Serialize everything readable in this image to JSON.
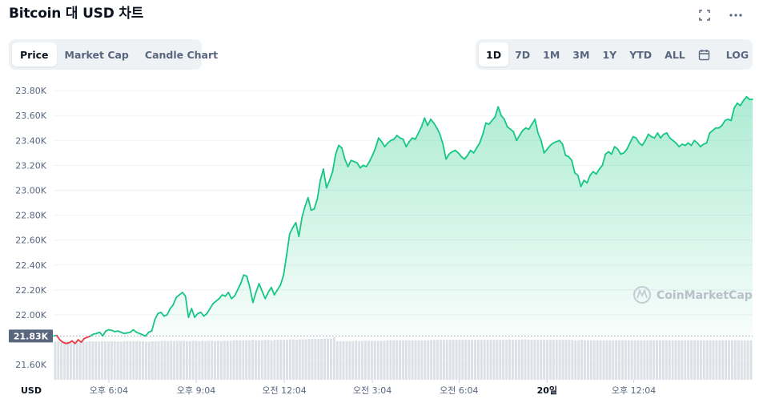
{
  "header": {
    "title": "Bitcoin 대 USD 차트",
    "expand_icon": "expand-icon",
    "more_icon": "more-horizontal-icon"
  },
  "chart_tabs": [
    {
      "label": "Price",
      "active": true
    },
    {
      "label": "Market Cap",
      "active": false
    },
    {
      "label": "Candle Chart",
      "active": false
    }
  ],
  "range_tabs": [
    {
      "label": "1D",
      "active": true
    },
    {
      "label": "7D",
      "active": false
    },
    {
      "label": "1M",
      "active": false
    },
    {
      "label": "3M",
      "active": false
    },
    {
      "label": "1Y",
      "active": false
    },
    {
      "label": "YTD",
      "active": false
    },
    {
      "label": "ALL",
      "active": false
    }
  ],
  "calendar_icon": "calendar-icon",
  "log_label": "LOG",
  "watermark": "CoinMarketCap",
  "colors": {
    "up": "#16c784",
    "down": "#ea3943",
    "axis_text": "#58667e",
    "volume": "#dde1e7",
    "price_tag": "#58667e"
  },
  "chart_data": {
    "type": "line",
    "x_ticks": [
      "오후 6:04",
      "오후 9:04",
      "오전 12:04",
      "오전 3:04",
      "오전 6:04",
      "20일",
      "오후 12:04"
    ],
    "y_ticks": [
      "23.80K",
      "23.60K",
      "23.40K",
      "23.20K",
      "23.00K",
      "22.80K",
      "22.60K",
      "22.40K",
      "22.20K",
      "22.00K",
      "21.60K"
    ],
    "ylim": [
      21530,
      23820
    ],
    "open_price": 21830,
    "open_price_label": "21.83K",
    "currency_label": "USD",
    "price_series": [
      21830,
      21835,
      21800,
      21780,
      21770,
      21775,
      21790,
      21770,
      21800,
      21780,
      21810,
      21820,
      21830,
      21845,
      21850,
      21860,
      21830,
      21870,
      21880,
      21875,
      21865,
      21870,
      21860,
      21850,
      21855,
      21860,
      21880,
      21860,
      21850,
      21840,
      21830,
      21860,
      21870,
      21960,
      22010,
      22020,
      21990,
      22000,
      22050,
      22080,
      22140,
      22160,
      22180,
      22150,
      21980,
      22050,
      21980,
      22010,
      22020,
      21990,
      22010,
      22050,
      22090,
      22110,
      22130,
      22160,
      22150,
      22180,
      22130,
      22150,
      22200,
      22250,
      22320,
      22310,
      22220,
      22100,
      22180,
      22250,
      22190,
      22130,
      22180,
      22220,
      22160,
      22200,
      22240,
      22320,
      22480,
      22650,
      22700,
      22740,
      22630,
      22780,
      22870,
      22940,
      22840,
      22850,
      22930,
      23080,
      23170,
      23020,
      23080,
      23150,
      23290,
      23360,
      23340,
      23250,
      23190,
      23240,
      23230,
      23220,
      23180,
      23200,
      23190,
      23230,
      23280,
      23340,
      23420,
      23390,
      23350,
      23380,
      23400,
      23410,
      23440,
      23420,
      23410,
      23350,
      23390,
      23420,
      23410,
      23460,
      23510,
      23580,
      23520,
      23570,
      23540,
      23500,
      23450,
      23370,
      23250,
      23290,
      23310,
      23320,
      23300,
      23270,
      23250,
      23280,
      23320,
      23300,
      23340,
      23380,
      23450,
      23540,
      23530,
      23560,
      23590,
      23670,
      23600,
      23570,
      23510,
      23490,
      23470,
      23400,
      23440,
      23480,
      23500,
      23490,
      23530,
      23570,
      23460,
      23400,
      23300,
      23330,
      23360,
      23380,
      23390,
      23400,
      23370,
      23280,
      23270,
      23240,
      23140,
      23120,
      23030,
      23080,
      23060,
      23120,
      23150,
      23130,
      23170,
      23200,
      23290,
      23310,
      23290,
      23350,
      23330,
      23290,
      23300,
      23330,
      23380,
      23430,
      23420,
      23380,
      23360,
      23400,
      23450,
      23430,
      23420,
      23460,
      23420,
      23450,
      23460,
      23420,
      23400,
      23380,
      23350,
      23370,
      23360,
      23380,
      23360,
      23400,
      23380,
      23350,
      23370,
      23380,
      23460,
      23480,
      23500,
      23500,
      23520,
      23560,
      23570,
      23560,
      23660,
      23700,
      23680,
      23720,
      23750,
      23730,
      23730
    ],
    "volume_series": [
      0.85,
      0.86,
      0.85,
      0.86,
      0.86,
      0.85,
      0.86,
      0.86,
      0.86,
      0.86,
      0.85,
      0.86,
      0.86,
      0.85,
      0.85,
      0.86,
      0.86,
      0.85,
      0.86,
      0.86,
      0.85,
      0.85,
      0.86,
      0.86,
      0.86,
      0.86,
      0.86,
      0.86,
      0.86,
      0.85,
      0.85,
      0.86,
      0.86,
      0.86,
      0.87,
      0.87,
      0.86,
      0.87,
      0.86,
      0.87,
      0.87,
      0.87,
      0.86,
      0.86,
      0.87,
      0.87,
      0.86,
      0.87,
      0.86,
      0.87,
      0.87,
      0.86,
      0.87,
      0.86,
      0.87,
      0.87,
      0.87,
      0.88,
      0.88,
      0.88,
      0.88,
      0.88,
      0.88,
      0.89,
      0.88,
      0.88,
      0.88,
      0.89,
      0.89,
      0.88,
      0.89,
      0.89,
      0.89,
      0.89,
      0.89,
      0.9,
      0.9,
      0.89,
      0.9,
      0.9,
      0.9,
      0.91,
      0.91,
      0.91,
      0.91,
      0.91,
      0.92,
      0.92,
      0.92,
      0.95,
      0.86,
      0.86,
      0.86,
      0.86,
      0.86,
      0.86,
      0.87,
      0.86,
      0.87,
      0.87,
      0.87,
      0.87,
      0.87,
      0.87,
      0.87,
      0.87,
      0.88,
      0.88,
      0.88,
      0.88,
      0.88,
      0.88,
      0.88,
      0.88,
      0.88,
      0.88,
      0.88,
      0.88,
      0.88,
      0.88,
      0.89,
      0.89,
      0.89,
      0.89,
      0.89,
      0.89,
      0.89,
      0.89,
      0.89,
      0.89,
      0.89,
      0.89,
      0.89,
      0.89,
      0.89,
      0.89,
      0.89,
      0.89,
      0.89,
      0.89,
      0.89,
      0.89,
      0.89,
      0.89,
      0.89,
      0.9,
      0.89,
      0.89,
      0.89,
      0.9,
      0.9,
      0.89,
      0.89,
      0.89,
      0.89,
      0.89,
      0.89,
      0.89,
      0.89,
      0.89,
      0.89,
      0.89,
      0.89,
      0.89,
      0.89,
      0.89,
      0.88,
      0.88,
      0.89,
      0.88,
      0.88,
      0.88,
      0.88,
      0.88,
      0.88,
      0.88,
      0.88,
      0.88,
      0.88,
      0.88,
      0.88,
      0.88,
      0.88,
      0.88,
      0.88,
      0.88,
      0.88,
      0.88,
      0.88,
      0.88,
      0.88,
      0.88,
      0.88,
      0.88,
      0.88,
      0.88,
      0.88,
      0.88,
      0.88,
      0.88,
      0.88,
      0.88,
      0.88,
      0.88,
      0.88,
      0.88,
      0.88,
      0.88,
      0.88,
      0.88,
      0.88,
      0.88,
      0.88,
      0.88,
      0.88,
      0.88,
      0.88,
      0.88,
      0.88,
      0.88,
      0.88,
      0.88,
      0.88
    ]
  }
}
